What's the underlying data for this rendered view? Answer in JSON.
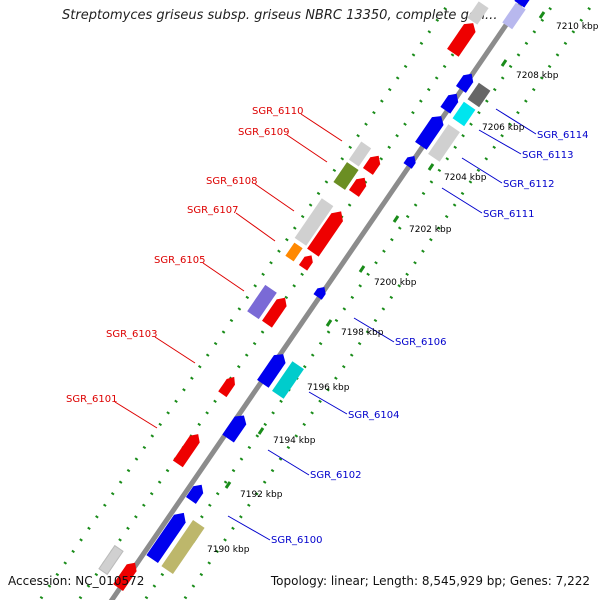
{
  "title": "Streptomyces griseus subsp. griseus NBRC 13350, complete gen...",
  "footer": {
    "accession": "Accession: NC_010572",
    "summary": "Topology: linear; Length: 8,545,929 bp; Genes: 7,222"
  },
  "colors": {
    "backbone": "#8c8c8c",
    "grid": "#1a8c1a",
    "label_top": "#dd0000",
    "label_bottom": "#0000cc",
    "tick_label": "#000000"
  },
  "kbp_ticks": [
    "7190 kbp",
    "7192 kbp",
    "7194 kbp",
    "7196 kbp",
    "7198 kbp",
    "7200 kbp",
    "7202 kbp",
    "7204 kbp",
    "7206 kbp",
    "7208 kbp",
    "7210 kbp"
  ],
  "top_labels": [
    "SGR_6101",
    "SGR_6103",
    "SGR_6105",
    "SGR_6107",
    "SGR_6108",
    "SGR_6109",
    "SGR_6110"
  ],
  "bottom_labels": [
    "SGR_6100",
    "SGR_6102",
    "SGR_6104",
    "SGR_6106",
    "SGR_6111",
    "SGR_6112",
    "SGR_6113",
    "SGR_6114"
  ]
}
